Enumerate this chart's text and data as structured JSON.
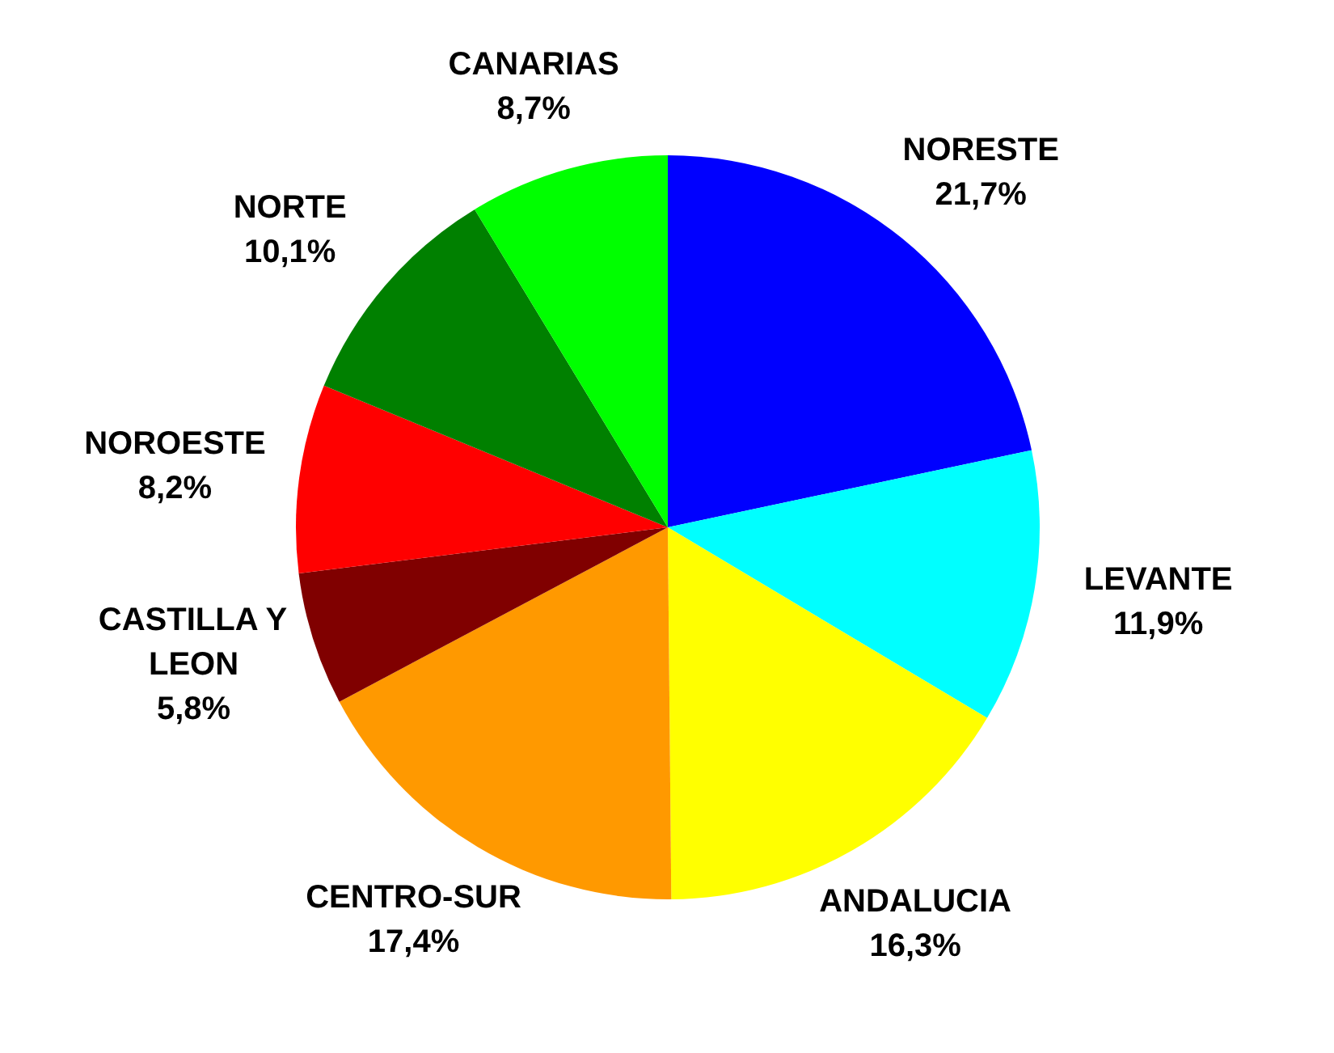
{
  "chart_data": {
    "type": "pie",
    "categories": [
      "NORESTE",
      "LEVANTE",
      "ANDALUCIA",
      "CENTRO-SUR",
      "CASTILLA Y LEON",
      "NOROESTE",
      "NORTE",
      "CANARIAS"
    ],
    "values": [
      21.7,
      11.9,
      16.3,
      17.4,
      5.8,
      8.2,
      10.1,
      8.7
    ],
    "value_labels": [
      "21,7%",
      "11,9%",
      "16,3%",
      "17,4%",
      "5,8%",
      "8,2%",
      "10,1%",
      "8,7%"
    ],
    "colors": [
      "#0000ff",
      "#00ffff",
      "#ffff00",
      "#ff9900",
      "#800000",
      "#ff0000",
      "#008000",
      "#00ff00"
    ]
  }
}
